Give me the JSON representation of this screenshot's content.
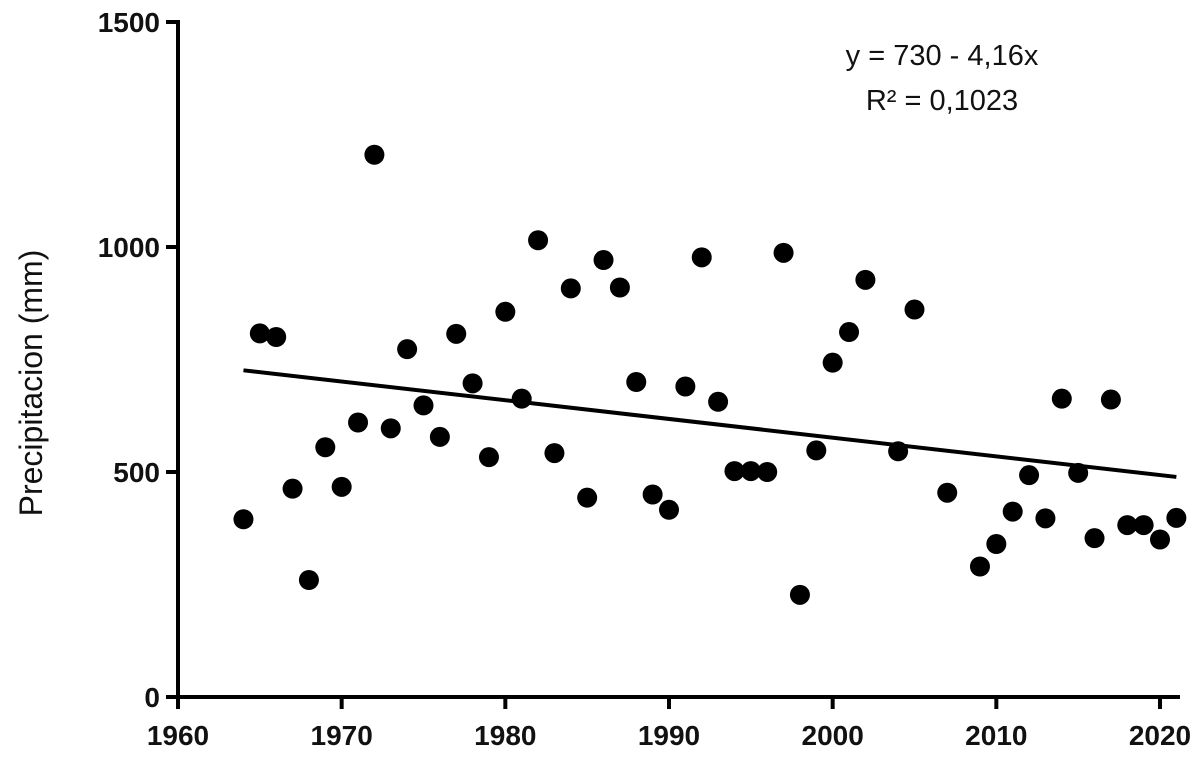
{
  "chart_data": {
    "type": "scatter",
    "title": "",
    "xlabel": "",
    "ylabel": "Precipitacion (mm)",
    "xlim": [
      1960,
      2022
    ],
    "ylim": [
      0,
      1500
    ],
    "x_ticks": [
      "1960",
      "1970",
      "1980",
      "1990",
      "2000",
      "2010",
      "2020"
    ],
    "y_ticks": [
      "0",
      "500",
      "1000",
      "1500"
    ],
    "grid": false,
    "legend": "none",
    "annotations": [
      "y = 730 - 4,16x",
      "R² = 0,1023"
    ],
    "trendline": {
      "x": [
        1964,
        2021
      ],
      "y": [
        726,
        489
      ]
    },
    "points": [
      [
        1964,
        395
      ],
      [
        1965,
        808
      ],
      [
        1966,
        800
      ],
      [
        1967,
        463
      ],
      [
        1968,
        260
      ],
      [
        1969,
        555
      ],
      [
        1970,
        467
      ],
      [
        1971,
        610
      ],
      [
        1972,
        1205
      ],
      [
        1973,
        597
      ],
      [
        1974,
        773
      ],
      [
        1975,
        648
      ],
      [
        1976,
        578
      ],
      [
        1977,
        807
      ],
      [
        1978,
        697
      ],
      [
        1979,
        533
      ],
      [
        1980,
        856
      ],
      [
        1981,
        663
      ],
      [
        1982,
        1015
      ],
      [
        1983,
        542
      ],
      [
        1984,
        908
      ],
      [
        1985,
        443
      ],
      [
        1986,
        971
      ],
      [
        1987,
        910
      ],
      [
        1988,
        700
      ],
      [
        1989,
        450
      ],
      [
        1990,
        416
      ],
      [
        1991,
        690
      ],
      [
        1992,
        977
      ],
      [
        1993,
        656
      ],
      [
        1994,
        502
      ],
      [
        1995,
        502
      ],
      [
        1996,
        500
      ],
      [
        1997,
        987
      ],
      [
        1998,
        227
      ],
      [
        1999,
        548
      ],
      [
        2000,
        743
      ],
      [
        2001,
        811
      ],
      [
        2002,
        927
      ],
      [
        2004,
        546
      ],
      [
        2005,
        861
      ],
      [
        2007,
        454
      ],
      [
        2009,
        290
      ],
      [
        2010,
        340
      ],
      [
        2011,
        412
      ],
      [
        2012,
        493
      ],
      [
        2013,
        397
      ],
      [
        2014,
        663
      ],
      [
        2015,
        498
      ],
      [
        2016,
        353
      ],
      [
        2017,
        661
      ],
      [
        2018,
        382
      ],
      [
        2019,
        382
      ],
      [
        2020,
        350
      ],
      [
        2021,
        398
      ]
    ],
    "colors": {
      "marker": "#000000",
      "line": "#000000",
      "axis": "#000000"
    }
  }
}
